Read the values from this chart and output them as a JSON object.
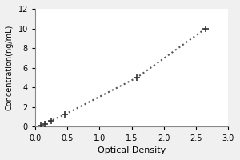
{
  "x_data": [
    0.085,
    0.155,
    0.25,
    0.46,
    1.58,
    2.65
  ],
  "y_data": [
    0.156,
    0.313,
    0.625,
    1.25,
    5.0,
    10.0
  ],
  "xlabel": "Optical Density",
  "ylabel": "Concentration(ng/mL)",
  "xlim": [
    0,
    3
  ],
  "ylim": [
    0,
    12
  ],
  "xticks": [
    0,
    0.5,
    1,
    1.5,
    2,
    2.5,
    3
  ],
  "yticks": [
    0,
    2,
    4,
    6,
    8,
    10,
    12
  ],
  "line_color": "#555555",
  "marker": "+",
  "marker_color": "#333333",
  "marker_size": 6,
  "line_style": "dotted",
  "line_width": 1.5,
  "bg_color": "#f0f0f0",
  "plot_bg_color": "#ffffff",
  "xlabel_fontsize": 8,
  "ylabel_fontsize": 7,
  "tick_fontsize": 7
}
